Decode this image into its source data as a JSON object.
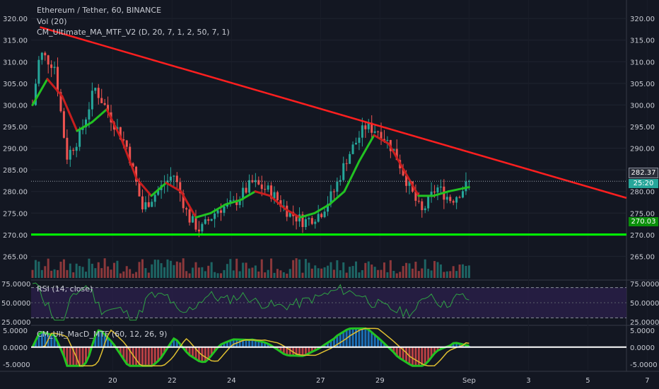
{
  "header": {
    "symbol": "Ethereum / Tether, 60, BINANCE",
    "indicator_vol": "Vol (20)",
    "indicator_ma": "CM_Ultimate_MA_MTF_V2 (D, 20, 7, 1, 2, 50, 7, 1)",
    "indicator_rsi": "RSI (14, close)",
    "indicator_macd": "CM_Ult_MacD_MTF (60, 12, 26, 9)"
  },
  "price_tags": {
    "last_price": "282.37",
    "countdown": "25:20",
    "support": "270.03"
  },
  "colors": {
    "background": "#131722",
    "up": "#26a69a",
    "down": "#ef5350",
    "trendline": "#ff1f1f",
    "support": "#00ff00",
    "ma": "#22c322",
    "ma_down": "#c81e1e",
    "rsi": "#2ea043",
    "macd_signal": "#e0c030"
  },
  "chart_data": [
    {
      "type": "candlestick",
      "title": "Ethereum / Tether, 60, BINANCE",
      "x_tick_labels": [
        "20",
        "22",
        "24",
        "27",
        "29",
        "Sep",
        "3",
        "5",
        "7"
      ],
      "y_ticks": [
        "265.00",
        "270.00",
        "275.00",
        "280.00",
        "285.00",
        "290.00",
        "295.00",
        "300.00",
        "305.00",
        "310.00",
        "315.00",
        "320.00"
      ],
      "ylim": [
        260,
        321
      ],
      "close_path": [
        {
          "t": 0,
          "p": 300
        },
        {
          "t": 0.5,
          "p": 312
        },
        {
          "t": 1.5,
          "p": 309
        },
        {
          "t": 2.3,
          "p": 288
        },
        {
          "t": 3.2,
          "p": 293
        },
        {
          "t": 4.2,
          "p": 304
        },
        {
          "t": 5.3,
          "p": 297
        },
        {
          "t": 6.4,
          "p": 290
        },
        {
          "t": 7.4,
          "p": 276
        },
        {
          "t": 8.4,
          "p": 280
        },
        {
          "t": 9.5,
          "p": 284
        },
        {
          "t": 10.5,
          "p": 274
        },
        {
          "t": 11.3,
          "p": 271
        },
        {
          "t": 12.5,
          "p": 276
        },
        {
          "t": 13.5,
          "p": 277
        },
        {
          "t": 14.8,
          "p": 282
        },
        {
          "t": 16.0,
          "p": 280
        },
        {
          "t": 17.3,
          "p": 275
        },
        {
          "t": 18.3,
          "p": 273
        },
        {
          "t": 19.4,
          "p": 275
        },
        {
          "t": 20.3,
          "p": 280
        },
        {
          "t": 21.2,
          "p": 288
        },
        {
          "t": 22.4,
          "p": 295
        },
        {
          "t": 23.4,
          "p": 294
        },
        {
          "t": 24.4,
          "p": 289
        },
        {
          "t": 25.5,
          "p": 280
        },
        {
          "t": 26.2,
          "p": 275
        },
        {
          "t": 27.2,
          "p": 281
        },
        {
          "t": 28.2,
          "p": 278
        },
        {
          "t": 29.4,
          "p": 282
        }
      ],
      "ma_line": [
        {
          "t": 0,
          "p": 300
        },
        {
          "t": 1,
          "p": 306
        },
        {
          "t": 2,
          "p": 302
        },
        {
          "t": 3,
          "p": 294
        },
        {
          "t": 4,
          "p": 296
        },
        {
          "t": 5,
          "p": 299
        },
        {
          "t": 6,
          "p": 292
        },
        {
          "t": 7,
          "p": 283
        },
        {
          "t": 8,
          "p": 279
        },
        {
          "t": 9,
          "p": 282
        },
        {
          "t": 10,
          "p": 280
        },
        {
          "t": 11,
          "p": 274
        },
        {
          "t": 12,
          "p": 275
        },
        {
          "t": 13,
          "p": 277
        },
        {
          "t": 14,
          "p": 278
        },
        {
          "t": 15,
          "p": 280
        },
        {
          "t": 16,
          "p": 279
        },
        {
          "t": 17,
          "p": 276
        },
        {
          "t": 18,
          "p": 274
        },
        {
          "t": 19,
          "p": 275
        },
        {
          "t": 20,
          "p": 277
        },
        {
          "t": 21,
          "p": 280
        },
        {
          "t": 22,
          "p": 287
        },
        {
          "t": 23,
          "p": 293
        },
        {
          "t": 24,
          "p": 291
        },
        {
          "t": 25,
          "p": 285
        },
        {
          "t": 26,
          "p": 279
        },
        {
          "t": 27,
          "p": 279
        },
        {
          "t": 28,
          "p": 280
        },
        {
          "t": 29.4,
          "p": 281
        }
      ],
      "trendline": [
        {
          "t": 0.5,
          "p": 318
        },
        {
          "t": 38.9,
          "p": 278.5
        }
      ],
      "support_level": 270.03,
      "last_price": 282.37
    },
    {
      "type": "bar",
      "title": "Vol (20)",
      "description_values": "volume bars, one per hourly candle"
    },
    {
      "type": "line",
      "title": "RSI (14, close)",
      "y_ticks": [
        "25.0000",
        "50.0000",
        "75.0000"
      ],
      "ylim": [
        22,
        78
      ],
      "bands": [
        30,
        50,
        70
      ]
    },
    {
      "type": "line",
      "title": "CM_Ult_MacD_MTF (60, 12, 26, 9)",
      "y_ticks": [
        "5.0000",
        "0.0000",
        "-5.0000"
      ],
      "ylim": [
        -6.5,
        6
      ]
    }
  ]
}
